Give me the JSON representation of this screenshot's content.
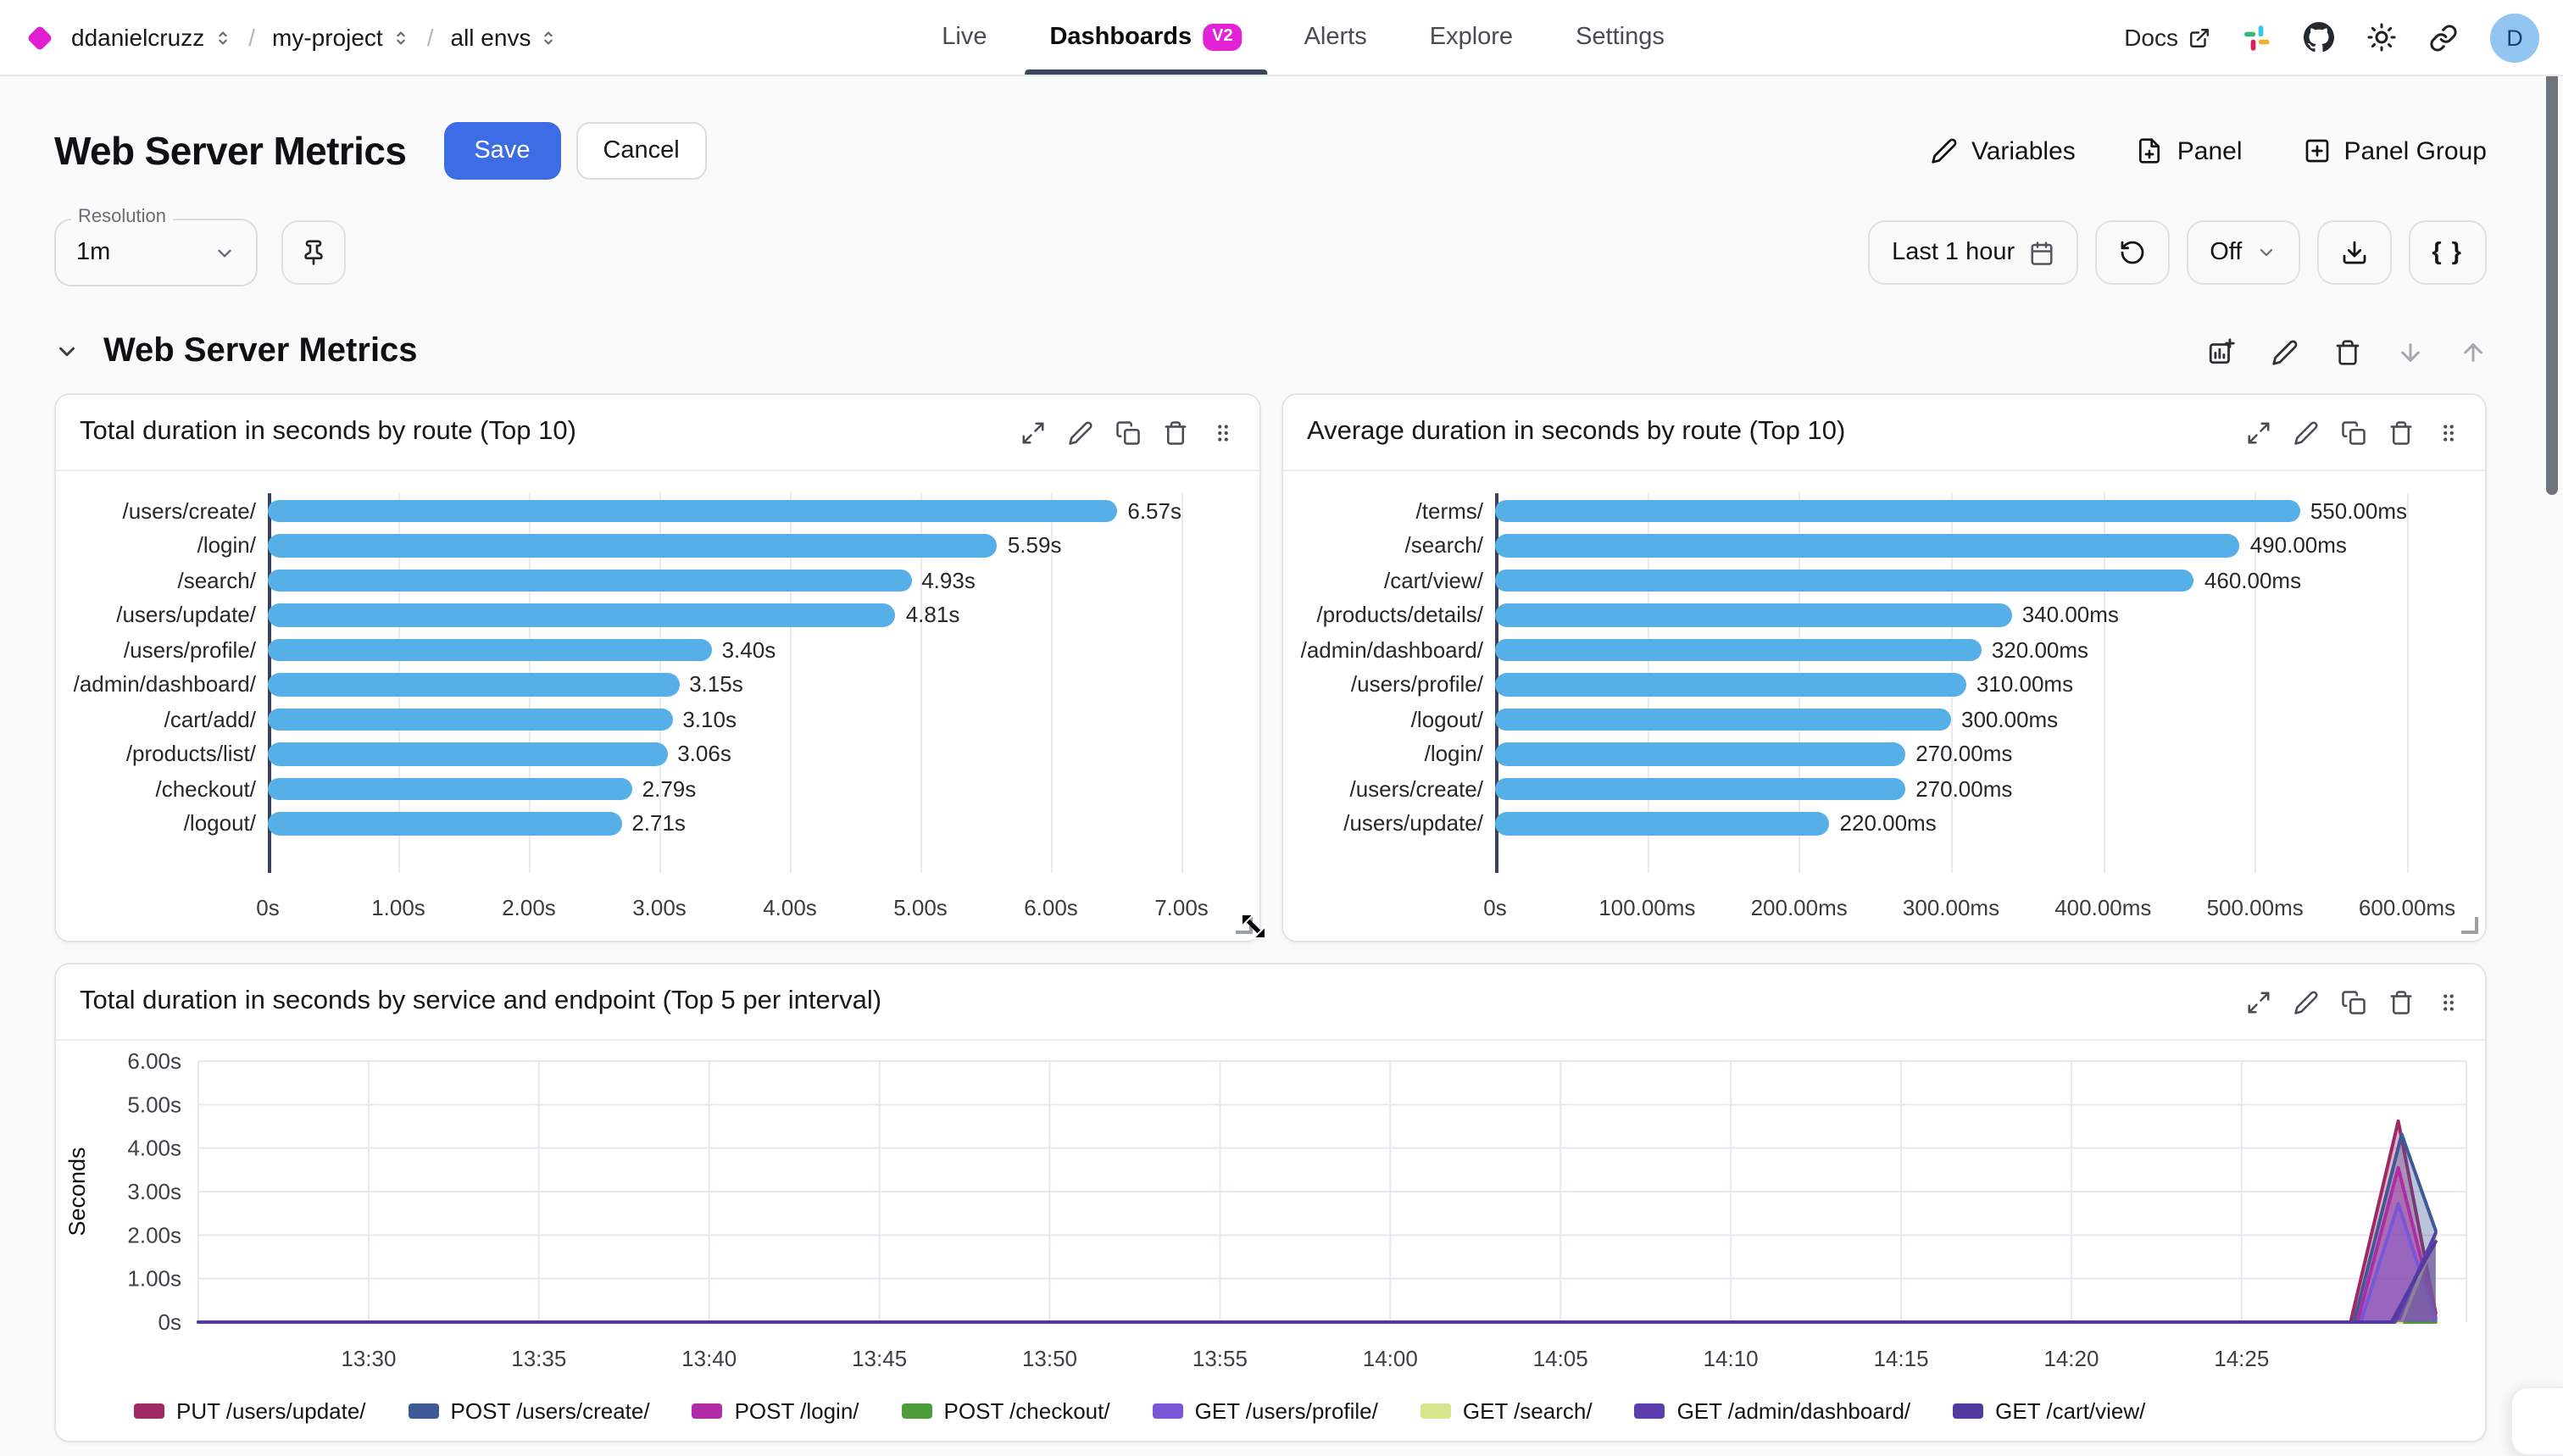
{
  "nav": {
    "org": "ddanielcruzz",
    "project": "my-project",
    "environment": "all envs",
    "tabs": [
      {
        "label": "Live",
        "active": false
      },
      {
        "label": "Dashboards",
        "badge": "V2",
        "active": true
      },
      {
        "label": "Alerts",
        "active": false
      },
      {
        "label": "Explore",
        "active": false
      },
      {
        "label": "Settings",
        "active": false
      }
    ],
    "docs_label": "Docs",
    "avatar_initial": "D"
  },
  "header": {
    "title": "Web Server Metrics",
    "save_label": "Save",
    "cancel_label": "Cancel",
    "variables_label": "Variables",
    "panel_label": "Panel",
    "panel_group_label": "Panel Group"
  },
  "toolbar": {
    "resolution_label": "Resolution",
    "resolution_value": "1m",
    "time_range_label": "Last 1 hour",
    "auto_refresh_label": "Off",
    "braces_label": "{ }"
  },
  "section": {
    "title": "Web Server Metrics"
  },
  "colors": {
    "brand_magenta": "#df1fd1",
    "primary_blue": "#3d6ce4",
    "bar_blue": "#57afe8"
  },
  "icons": [
    "diamond-logo-icon",
    "chevrons-updown-icon",
    "external-link-icon",
    "slack-icon",
    "github-icon",
    "sun-icon",
    "link-icon",
    "pencil-icon",
    "file-plus-icon",
    "square-plus-icon",
    "pin-icon",
    "calendar-icon",
    "refresh-icon",
    "chevron-down-icon",
    "download-icon",
    "braces-icon",
    "chart-plus-icon",
    "trash-icon",
    "arrow-down-icon",
    "arrow-up-icon",
    "expand-icon",
    "copy-icon",
    "drag-handle-icon"
  ],
  "chart_data": [
    {
      "type": "bar",
      "orientation": "horizontal",
      "title": "Total duration in seconds by route (Top 10)",
      "categories": [
        "/users/create/",
        "/login/",
        "/search/",
        "/users/update/",
        "/users/profile/",
        "/admin/dashboard/",
        "/cart/add/",
        "/products/list/",
        "/checkout/",
        "/logout/"
      ],
      "values": [
        6.57,
        5.59,
        4.93,
        4.81,
        3.4,
        3.15,
        3.1,
        3.06,
        2.79,
        2.71
      ],
      "value_labels": [
        "6.57s",
        "5.59s",
        "4.93s",
        "4.81s",
        "3.40s",
        "3.15s",
        "3.10s",
        "3.06s",
        "2.79s",
        "2.71s"
      ],
      "xlim": [
        0,
        7
      ],
      "x_ticks": [
        {
          "v": 0,
          "label": "0s"
        },
        {
          "v": 1,
          "label": "1.00s"
        },
        {
          "v": 2,
          "label": "2.00s"
        },
        {
          "v": 3,
          "label": "3.00s"
        },
        {
          "v": 4,
          "label": "4.00s"
        },
        {
          "v": 5,
          "label": "5.00s"
        },
        {
          "v": 6,
          "label": "6.00s"
        },
        {
          "v": 7,
          "label": "7.00s"
        }
      ],
      "bar_color": "#57afe8"
    },
    {
      "type": "bar",
      "orientation": "horizontal",
      "title": "Average duration in seconds by route (Top 10)",
      "categories": [
        "/terms/",
        "/search/",
        "/cart/view/",
        "/products/details/",
        "/admin/dashboard/",
        "/users/profile/",
        "/logout/",
        "/login/",
        "/users/create/",
        "/users/update/"
      ],
      "values": [
        550,
        490,
        460,
        340,
        320,
        310,
        300,
        270,
        270,
        220
      ],
      "value_labels": [
        "550.00ms",
        "490.00ms",
        "460.00ms",
        "340.00ms",
        "320.00ms",
        "310.00ms",
        "300.00ms",
        "270.00ms",
        "270.00ms",
        "220.00ms"
      ],
      "xlim": [
        0,
        600
      ],
      "x_ticks": [
        {
          "v": 0,
          "label": "0s"
        },
        {
          "v": 100,
          "label": "100.00ms"
        },
        {
          "v": 200,
          "label": "200.00ms"
        },
        {
          "v": 300,
          "label": "300.00ms"
        },
        {
          "v": 400,
          "label": "400.00ms"
        },
        {
          "v": 500,
          "label": "500.00ms"
        },
        {
          "v": 600,
          "label": "600.00ms"
        }
      ],
      "bar_color": "#57afe8"
    },
    {
      "type": "area",
      "title": "Total duration in seconds by service and endpoint (Top 5 per interval)",
      "ylabel": "Seconds",
      "ylim": [
        0,
        6
      ],
      "y_ticks": [
        {
          "v": 0,
          "label": "0s"
        },
        {
          "v": 1,
          "label": "1.00s"
        },
        {
          "v": 2,
          "label": "2.00s"
        },
        {
          "v": 3,
          "label": "3.00s"
        },
        {
          "v": 4,
          "label": "4.00s"
        },
        {
          "v": 5,
          "label": "5.00s"
        },
        {
          "v": 6,
          "label": "6.00s"
        }
      ],
      "x_domain_minutes": [
        0,
        66.6
      ],
      "x_ticks": [
        {
          "m": 5,
          "label": "13:30"
        },
        {
          "m": 10,
          "label": "13:35"
        },
        {
          "m": 15,
          "label": "13:40"
        },
        {
          "m": 20,
          "label": "13:45"
        },
        {
          "m": 25,
          "label": "13:50"
        },
        {
          "m": 30,
          "label": "13:55"
        },
        {
          "m": 35,
          "label": "14:00"
        },
        {
          "m": 40,
          "label": "14:05"
        },
        {
          "m": 45,
          "label": "14:10"
        },
        {
          "m": 50,
          "label": "14:15"
        },
        {
          "m": 55,
          "label": "14:20"
        },
        {
          "m": 60,
          "label": "14:25"
        }
      ],
      "fill_opacity": 0.35,
      "series": [
        {
          "name": "PUT /users/update/",
          "color": "#a02963",
          "points": [
            [
              0,
              0
            ],
            [
              63.2,
              0
            ],
            [
              64.6,
              4.62
            ],
            [
              65.7,
              0.2
            ]
          ]
        },
        {
          "name": "POST /users/create/",
          "color": "#3d5a96",
          "points": [
            [
              0,
              0
            ],
            [
              63.3,
              0
            ],
            [
              64.7,
              4.32
            ],
            [
              65.7,
              2.1
            ]
          ]
        },
        {
          "name": "POST /login/",
          "color": "#b02ba5",
          "points": [
            [
              0,
              0
            ],
            [
              63.4,
              0
            ],
            [
              64.6,
              3.55
            ],
            [
              65.7,
              0.1
            ]
          ]
        },
        {
          "name": "POST /checkout/",
          "color": "#4e9d3c",
          "points": [
            [
              0,
              0
            ],
            [
              65.7,
              0
            ]
          ]
        },
        {
          "name": "GET /users/profile/",
          "color": "#7a55d8",
          "points": [
            [
              0,
              0
            ],
            [
              63.5,
              0
            ],
            [
              64.6,
              2.72
            ],
            [
              65.7,
              0.05
            ]
          ]
        },
        {
          "name": "GET /search/",
          "color": "#d9e48e",
          "points": [
            [
              0,
              0
            ],
            [
              64.7,
              0
            ],
            [
              65.7,
              1.95
            ]
          ]
        },
        {
          "name": "GET /admin/dashboard/",
          "color": "#5c3dad",
          "points": [
            [
              0,
              0
            ],
            [
              64.5,
              0
            ],
            [
              65.7,
              2.05
            ]
          ]
        },
        {
          "name": "GET /cart/view/",
          "color": "#533a9e",
          "points": [
            [
              0,
              0
            ],
            [
              64.4,
              0
            ],
            [
              65.2,
              1.15
            ],
            [
              65.7,
              1.85
            ]
          ]
        }
      ]
    }
  ]
}
